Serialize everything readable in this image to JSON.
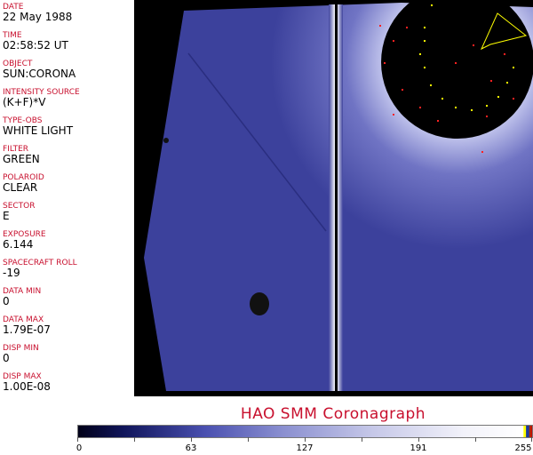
{
  "header_fields": [
    {
      "label": "DATE",
      "value": "22 May 1988"
    },
    {
      "label": "TIME",
      "value": "02:58:52 UT"
    },
    {
      "label": "OBJECT",
      "value": "SUN:CORONA"
    },
    {
      "label": "INTENSITY SOURCE",
      "value": "(K+F)*V"
    },
    {
      "label": "TYPE-OBS",
      "value": "WHITE LIGHT"
    },
    {
      "label": "FILTER",
      "value": "GREEN"
    },
    {
      "label": "POLAROID",
      "value": "CLEAR"
    },
    {
      "label": "SECTOR",
      "value": "E"
    },
    {
      "label": "EXPOSURE",
      "value": "6.144"
    },
    {
      "label": "SPACECRAFT ROLL",
      "value": "-19"
    },
    {
      "label": "DATA MIN",
      "value": "0"
    },
    {
      "label": "DATA MAX",
      "value": "1.79E-07"
    },
    {
      "label": "DISP MIN",
      "value": "0"
    },
    {
      "label": "DISP MAX",
      "value": "1.00E-08"
    }
  ],
  "title": "HAO  SMM Coronagraph",
  "colorbar": {
    "ticks": [
      "0",
      "63",
      "127",
      "191",
      "255"
    ],
    "colors": {
      "low": "#000018",
      "mid": "#4a50b0",
      "high": "#ffffff"
    }
  },
  "image": {
    "colors": {
      "background": "#000000",
      "field": "#3a3f9a",
      "marker_red": "#ff2020",
      "marker_yellow": "#ffff00"
    }
  }
}
